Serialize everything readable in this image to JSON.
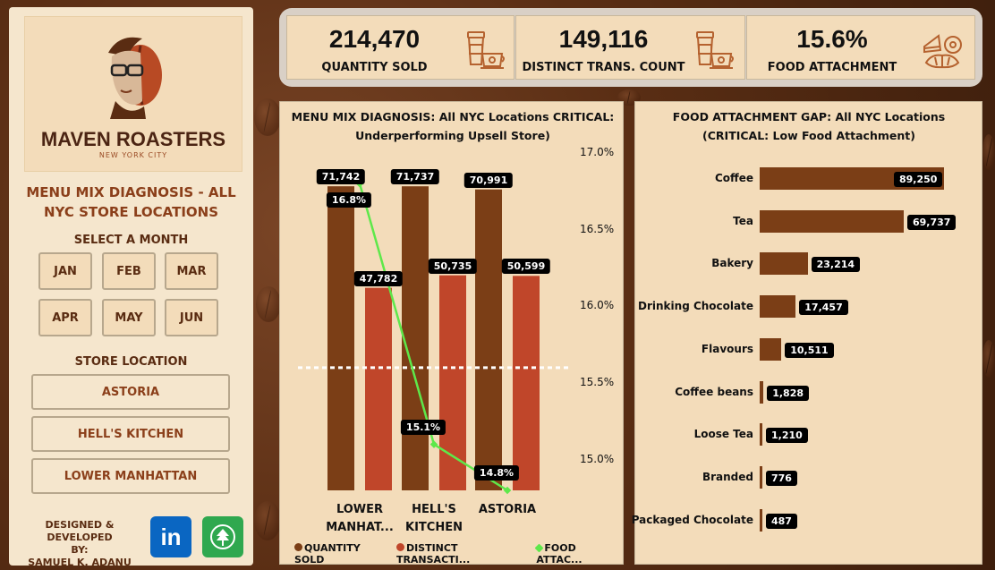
{
  "brand": {
    "name": "MAVEN ROASTERS",
    "city": "NEW YORK CITY"
  },
  "sidebar": {
    "heading": "MENU MIX DIAGNOSIS - ALL NYC STORE LOCATIONS",
    "month_label": "SELECT A MONTH",
    "months": [
      "JAN",
      "FEB",
      "MAR",
      "APR",
      "MAY",
      "JUN"
    ],
    "store_label": "STORE LOCATION",
    "stores": [
      "ASTORIA",
      "HELL'S KITCHEN",
      "LOWER MANHATTAN"
    ],
    "credit": [
      "DESIGNED & DEVELOPED",
      "BY:",
      "SAMUEL K. ADANU"
    ]
  },
  "kpis": [
    {
      "value": "214,470",
      "label": "QUANTITY SOLD",
      "icon": "coffee-cups-icon"
    },
    {
      "value": "149,116",
      "label": "DISTINCT TRANS. COUNT",
      "icon": "coffee-cups-icon"
    },
    {
      "value": "15.6%",
      "label": "FOOD ATTACHMENT",
      "icon": "pastries-icon"
    }
  ],
  "colors": {
    "quantity": "#7b3e16",
    "transactions": "#c0462a",
    "food": "#5ee84a",
    "tag_bg": "#000000"
  },
  "chart_data": [
    {
      "type": "bar",
      "title": "MENU MIX DIAGNOSIS: All NYC Locations CRITICAL: Underperforming Upsell Store)",
      "categories": [
        "LOWER MANHAT...",
        "HELL'S KITCHEN",
        "ASTORIA"
      ],
      "series": [
        {
          "name": "QUANTITY SOLD",
          "values": [
            71742,
            71737,
            70991
          ],
          "labels": [
            "71,742",
            "71,737",
            "70,991"
          ]
        },
        {
          "name": "DISTINCT TRANSACTI...",
          "values": [
            47782,
            50735,
            50599
          ],
          "labels": [
            "47,782",
            "50,735",
            "50,599"
          ]
        },
        {
          "name": "FOOD ATTAC...",
          "kind": "line",
          "axis": "secondary",
          "values": [
            16.8,
            15.1,
            14.8
          ],
          "labels": [
            "16.8%",
            "15.1%",
            "14.8%"
          ]
        }
      ],
      "secondary_axis": {
        "ticks": [
          "17.0%",
          "16.5%",
          "16.0%",
          "15.5%",
          "15.0%"
        ],
        "range": [
          14.8,
          17.0
        ]
      },
      "reference_line": 15.6,
      "legend": "bottom"
    },
    {
      "type": "bar",
      "orientation": "horizontal",
      "title": "FOOD ATTACHMENT GAP: All NYC Locations (CRITICAL: Low Food Attachment)",
      "categories": [
        "Coffee",
        "Tea",
        "Bakery",
        "Drinking Chocolate",
        "Flavours",
        "Coffee beans",
        "Loose Tea",
        "Branded",
        "Packaged Chocolate"
      ],
      "values": [
        89250,
        69737,
        23214,
        17457,
        10511,
        1828,
        1210,
        776,
        487
      ],
      "labels": [
        "89,250",
        "69,737",
        "23,214",
        "17,457",
        "10,511",
        "1,828",
        "1,210",
        "776",
        "487"
      ]
    }
  ]
}
